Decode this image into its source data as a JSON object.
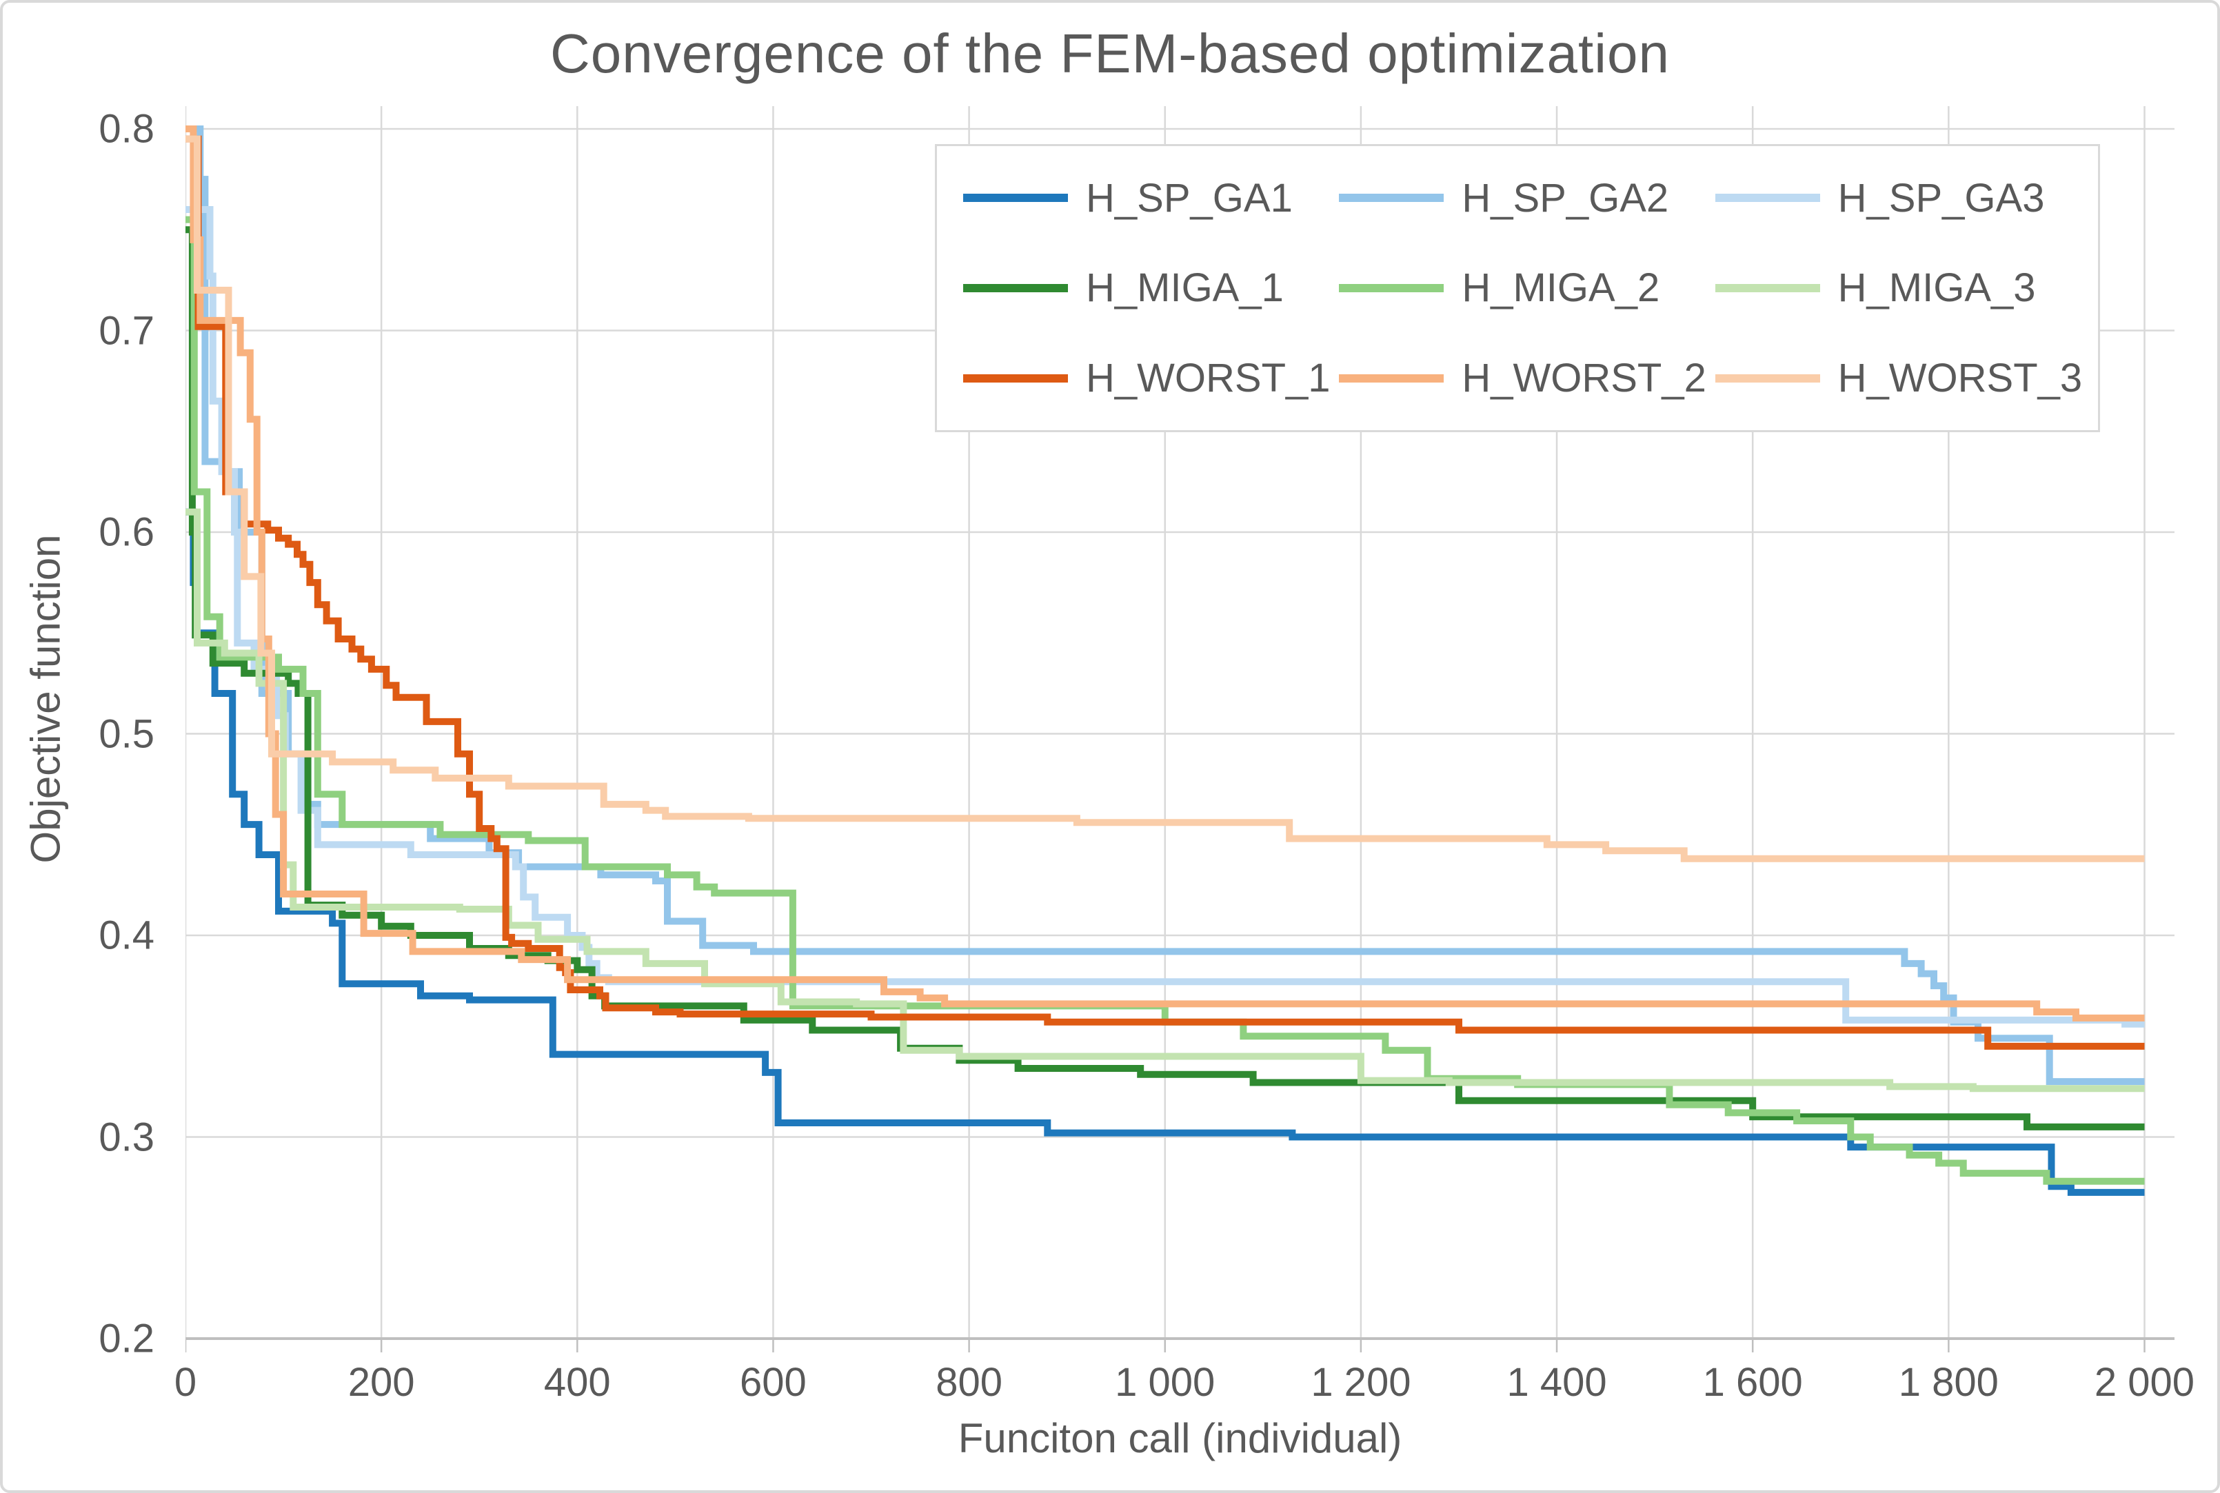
{
  "title": "Convergence of the FEM-based optimization",
  "frame": {
    "border_color": "#D9D9D9",
    "background": "#FFFFFF"
  },
  "axes": {
    "x_title": "Funciton call (individual)",
    "y_title": "Objective function",
    "x_tick_labels": [
      "0",
      "200",
      "400",
      "600",
      "800",
      "1 000",
      "1 200",
      "1 400",
      "1 600",
      "1 800",
      "2 000"
    ],
    "x_tick_values": [
      0,
      200,
      400,
      600,
      800,
      1000,
      1200,
      1400,
      1600,
      1800,
      2000
    ],
    "y_tick_labels": [
      "0.2",
      "0.3",
      "0.4",
      "0.5",
      "0.6",
      "0.7",
      "0.8"
    ],
    "y_tick_values": [
      0.2,
      0.3,
      0.4,
      0.5,
      0.6,
      0.7,
      0.8
    ],
    "text_color": "#595959",
    "gridline_color": "#D9D9D9",
    "axis_line_color": "#BFBFBF"
  },
  "legend": {
    "position": "top-center-inside",
    "columns": 3,
    "border_color": "#D9D9D9",
    "background": "#FFFFFF"
  },
  "chart_data": {
    "type": "line",
    "subtype": "step-after",
    "title": "Convergence of the FEM-based optimization",
    "xlabel": "Funciton call (individual)",
    "ylabel": "Objective function",
    "xlim": [
      0,
      2000
    ],
    "ylim": [
      0.2,
      0.8
    ],
    "grid": true,
    "legend_position": "top-center-inside",
    "series": [
      {
        "name": "H_SP_GA1",
        "color": "#1E78BC",
        "points": [
          [
            0,
            0.61
          ],
          [
            8,
            0.575
          ],
          [
            12,
            0.55
          ],
          [
            30,
            0.52
          ],
          [
            48,
            0.47
          ],
          [
            60,
            0.455
          ],
          [
            75,
            0.44
          ],
          [
            95,
            0.412
          ],
          [
            150,
            0.406
          ],
          [
            160,
            0.376
          ],
          [
            240,
            0.37
          ],
          [
            290,
            0.368
          ],
          [
            375,
            0.341
          ],
          [
            592,
            0.332
          ],
          [
            605,
            0.307
          ],
          [
            880,
            0.302
          ],
          [
            1130,
            0.3
          ],
          [
            1700,
            0.295
          ],
          [
            1905,
            0.2755
          ],
          [
            1925,
            0.2725
          ]
        ]
      },
      {
        "name": "H_SP_GA2",
        "color": "#93C5EA",
        "points": [
          [
            0,
            0.8
          ],
          [
            15,
            0.775
          ],
          [
            20,
            0.635
          ],
          [
            42,
            0.63
          ],
          [
            55,
            0.6
          ],
          [
            78,
            0.52
          ],
          [
            105,
            0.49
          ],
          [
            122,
            0.465
          ],
          [
            135,
            0.455
          ],
          [
            250,
            0.448
          ],
          [
            310,
            0.441
          ],
          [
            340,
            0.434
          ],
          [
            424,
            0.43
          ],
          [
            480,
            0.427
          ],
          [
            492,
            0.407
          ],
          [
            528,
            0.395
          ],
          [
            580,
            0.392
          ],
          [
            1755,
            0.386
          ],
          [
            1772,
            0.381
          ],
          [
            1785,
            0.375
          ],
          [
            1795,
            0.369
          ],
          [
            1805,
            0.357
          ],
          [
            1830,
            0.349
          ],
          [
            1903,
            0.3275
          ]
        ]
      },
      {
        "name": "H_SP_GA3",
        "color": "#BDDAF2",
        "points": [
          [
            0,
            0.76
          ],
          [
            25,
            0.727
          ],
          [
            28,
            0.665
          ],
          [
            37,
            0.63
          ],
          [
            50,
            0.6
          ],
          [
            53,
            0.545
          ],
          [
            70,
            0.532
          ],
          [
            93,
            0.509
          ],
          [
            102,
            0.49
          ],
          [
            118,
            0.462
          ],
          [
            135,
            0.445
          ],
          [
            230,
            0.44
          ],
          [
            337,
            0.434
          ],
          [
            345,
            0.419
          ],
          [
            357,
            0.409
          ],
          [
            390,
            0.4
          ],
          [
            405,
            0.394
          ],
          [
            412,
            0.386
          ],
          [
            420,
            0.379
          ],
          [
            432,
            0.377
          ],
          [
            1695,
            0.358
          ],
          [
            1980,
            0.356
          ]
        ]
      },
      {
        "name": "H_MIGA_1",
        "color": "#2F8A31",
        "points": [
          [
            0,
            0.75
          ],
          [
            7,
            0.6
          ],
          [
            10,
            0.549
          ],
          [
            28,
            0.535
          ],
          [
            60,
            0.53
          ],
          [
            105,
            0.525
          ],
          [
            115,
            0.52
          ],
          [
            125,
            0.415
          ],
          [
            160,
            0.41
          ],
          [
            200,
            0.4045
          ],
          [
            230,
            0.4
          ],
          [
            290,
            0.3935
          ],
          [
            330,
            0.39
          ],
          [
            370,
            0.3875
          ],
          [
            400,
            0.383
          ],
          [
            415,
            0.37
          ],
          [
            428,
            0.365
          ],
          [
            570,
            0.358
          ],
          [
            640,
            0.353
          ],
          [
            730,
            0.344
          ],
          [
            790,
            0.338
          ],
          [
            850,
            0.334
          ],
          [
            975,
            0.331
          ],
          [
            1090,
            0.327
          ],
          [
            1300,
            0.318
          ],
          [
            1600,
            0.31
          ],
          [
            1880,
            0.305
          ]
        ]
      },
      {
        "name": "H_MIGA_2",
        "color": "#8FD080",
        "points": [
          [
            0,
            0.755
          ],
          [
            9,
            0.62
          ],
          [
            22,
            0.558
          ],
          [
            35,
            0.538
          ],
          [
            95,
            0.532
          ],
          [
            120,
            0.52
          ],
          [
            135,
            0.47
          ],
          [
            160,
            0.455
          ],
          [
            260,
            0.45
          ],
          [
            350,
            0.447
          ],
          [
            408,
            0.434
          ],
          [
            492,
            0.43
          ],
          [
            522,
            0.424
          ],
          [
            540,
            0.421
          ],
          [
            620,
            0.365
          ],
          [
            1000,
            0.357
          ],
          [
            1080,
            0.35
          ],
          [
            1225,
            0.343
          ],
          [
            1268,
            0.329
          ],
          [
            1360,
            0.326
          ],
          [
            1515,
            0.316
          ],
          [
            1575,
            0.312
          ],
          [
            1645,
            0.308
          ],
          [
            1700,
            0.3
          ],
          [
            1720,
            0.295
          ],
          [
            1760,
            0.291
          ],
          [
            1790,
            0.287
          ],
          [
            1815,
            0.282
          ],
          [
            1900,
            0.278
          ]
        ]
      },
      {
        "name": "H_MIGA_3",
        "color": "#C3E3B0",
        "points": [
          [
            0,
            0.61
          ],
          [
            12,
            0.545
          ],
          [
            40,
            0.54
          ],
          [
            75,
            0.525
          ],
          [
            100,
            0.435
          ],
          [
            110,
            0.414
          ],
          [
            280,
            0.413
          ],
          [
            330,
            0.405
          ],
          [
            360,
            0.398
          ],
          [
            410,
            0.392
          ],
          [
            470,
            0.386
          ],
          [
            530,
            0.376
          ],
          [
            608,
            0.367
          ],
          [
            685,
            0.366
          ],
          [
            733,
            0.343
          ],
          [
            790,
            0.34
          ],
          [
            1200,
            0.328
          ],
          [
            1290,
            0.327
          ],
          [
            1740,
            0.325
          ],
          [
            1825,
            0.324
          ]
        ]
      },
      {
        "name": "H_WORST_1",
        "color": "#DE5A13",
        "points": [
          [
            0,
            0.795
          ],
          [
            13,
            0.702
          ],
          [
            41,
            0.62
          ],
          [
            60,
            0.604
          ],
          [
            84,
            0.601
          ],
          [
            95,
            0.597
          ],
          [
            105,
            0.594
          ],
          [
            114,
            0.589
          ],
          [
            120,
            0.584
          ],
          [
            127,
            0.575
          ],
          [
            135,
            0.564
          ],
          [
            144,
            0.556
          ],
          [
            156,
            0.547
          ],
          [
            170,
            0.542
          ],
          [
            179,
            0.537
          ],
          [
            190,
            0.532
          ],
          [
            205,
            0.524
          ],
          [
            215,
            0.518
          ],
          [
            246,
            0.506
          ],
          [
            278,
            0.49
          ],
          [
            290,
            0.47
          ],
          [
            300,
            0.453
          ],
          [
            312,
            0.448
          ],
          [
            318,
            0.443
          ],
          [
            327,
            0.399
          ],
          [
            333,
            0.396
          ],
          [
            350,
            0.3935
          ],
          [
            382,
            0.384
          ],
          [
            388,
            0.3815
          ],
          [
            393,
            0.373
          ],
          [
            423,
            0.37
          ],
          [
            429,
            0.364
          ],
          [
            480,
            0.362
          ],
          [
            505,
            0.361
          ],
          [
            700,
            0.3595
          ],
          [
            880,
            0.357
          ],
          [
            1300,
            0.353
          ],
          [
            1840,
            0.345
          ]
        ]
      },
      {
        "name": "H_WORST_2",
        "color": "#F8B17E",
        "points": [
          [
            0,
            0.8
          ],
          [
            8,
            0.745
          ],
          [
            15,
            0.705
          ],
          [
            56,
            0.689
          ],
          [
            66,
            0.656
          ],
          [
            73,
            0.6
          ],
          [
            78,
            0.547
          ],
          [
            85,
            0.5
          ],
          [
            92,
            0.46
          ],
          [
            100,
            0.4205
          ],
          [
            182,
            0.401
          ],
          [
            232,
            0.392
          ],
          [
            343,
            0.388
          ],
          [
            390,
            0.378
          ],
          [
            713,
            0.372
          ],
          [
            750,
            0.369
          ],
          [
            775,
            0.366
          ],
          [
            1890,
            0.362
          ],
          [
            1930,
            0.359
          ]
        ]
      },
      {
        "name": "H_WORST_3",
        "color": "#FACDA9",
        "points": [
          [
            0,
            0.795
          ],
          [
            12,
            0.72
          ],
          [
            44,
            0.62
          ],
          [
            60,
            0.578
          ],
          [
            77,
            0.54
          ],
          [
            88,
            0.49
          ],
          [
            150,
            0.486
          ],
          [
            212,
            0.482
          ],
          [
            255,
            0.478
          ],
          [
            330,
            0.474
          ],
          [
            427,
            0.465
          ],
          [
            470,
            0.462
          ],
          [
            490,
            0.459
          ],
          [
            575,
            0.458
          ],
          [
            910,
            0.456
          ],
          [
            1127,
            0.448
          ],
          [
            1390,
            0.445
          ],
          [
            1450,
            0.442
          ],
          [
            1530,
            0.438
          ]
        ]
      }
    ]
  }
}
